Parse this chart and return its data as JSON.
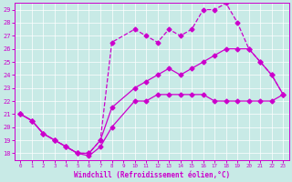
{
  "xlabel": "Windchill (Refroidissement éolien,°C)",
  "xlim": [
    -0.5,
    23.5
  ],
  "ylim": [
    17.5,
    29.5
  ],
  "yticks": [
    18,
    19,
    20,
    21,
    22,
    23,
    24,
    25,
    26,
    27,
    28,
    29
  ],
  "xticks": [
    0,
    1,
    2,
    3,
    4,
    5,
    6,
    7,
    8,
    9,
    10,
    11,
    12,
    13,
    14,
    15,
    16,
    17,
    18,
    19,
    20,
    21,
    22,
    23
  ],
  "bg_color": "#c8eae6",
  "line_color": "#cc00cc",
  "line1_x": [
    0,
    1,
    2,
    3,
    4,
    5,
    6,
    7,
    8,
    10,
    11,
    12,
    13,
    14,
    15,
    16,
    17,
    18,
    19,
    20,
    21,
    22,
    23
  ],
  "line1_y": [
    21.0,
    20.5,
    19.5,
    19.0,
    18.5,
    18.0,
    17.8,
    18.5,
    20.0,
    22.0,
    22.0,
    22.5,
    22.5,
    22.5,
    22.5,
    22.5,
    22.0,
    22.0,
    22.0,
    22.0,
    22.0,
    22.0,
    22.5
  ],
  "line2_x": [
    0,
    1,
    2,
    3,
    4,
    5,
    6,
    7,
    8,
    10,
    11,
    12,
    13,
    14,
    15,
    16,
    17,
    18,
    19,
    20,
    21,
    22,
    23
  ],
  "line2_y": [
    21.0,
    20.5,
    19.5,
    19.0,
    18.5,
    18.0,
    18.0,
    19.0,
    26.5,
    27.5,
    27.0,
    26.5,
    27.5,
    27.0,
    27.5,
    29.0,
    29.0,
    29.5,
    28.0,
    26.0,
    25.0,
    24.0,
    22.5
  ],
  "line3_x": [
    0,
    1,
    2,
    3,
    4,
    5,
    6,
    7,
    8,
    10,
    11,
    12,
    13,
    14,
    15,
    16,
    17,
    18,
    19,
    20,
    21,
    22,
    23
  ],
  "line3_y": [
    21.0,
    20.5,
    19.5,
    19.0,
    18.5,
    18.0,
    18.0,
    19.0,
    21.5,
    23.0,
    23.5,
    24.0,
    24.5,
    24.0,
    24.5,
    25.0,
    25.5,
    26.0,
    26.0,
    26.0,
    25.0,
    24.0,
    22.5
  ],
  "markersize": 2.5,
  "linewidth": 0.9
}
